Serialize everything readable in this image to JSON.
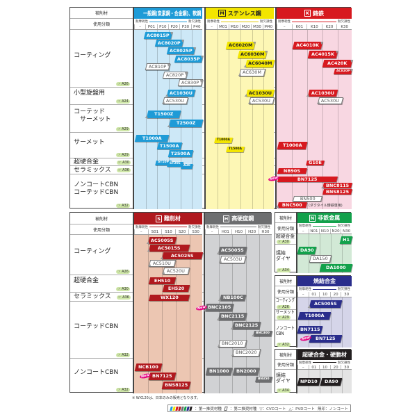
{
  "common": {
    "material_label": "被削材",
    "usage_label": "使用分類",
    "wear": "耐摩耗性",
    "chipping": "耐欠損性",
    "new_label": "New"
  },
  "tables": [
    {
      "id": "top",
      "rows": [
        {
          "label": "コーティング",
          "page": "A26"
        },
        {
          "label": "小型旋盤用",
          "page": "A24"
        },
        {
          "label": "コーテッド\n　サーメット",
          "page": "A29"
        },
        {
          "label": "サーメット",
          "page": "A29"
        },
        {
          "label": "超硬合金",
          "page": "A30"
        },
        {
          "label": "セラミックス",
          "page": "A36"
        },
        {
          "label": "ノンコートCBN\nコーテッドCBN",
          "page": "A32"
        }
      ],
      "sections": [
        {
          "letter": "P",
          "title": "一般鋼(炭素鋼・合金鋼)、軟鋼",
          "color": "#1e9bd7",
          "bg": "#cde8f7",
          "text_color": "#ffffff",
          "codes": [
            "–",
            "P01",
            "P10",
            "P20",
            "P30",
            "P40"
          ],
          "rows": [
            [
              {
                "name": "AC8015P",
                "from": "P01",
                "to": "P10",
                "coat": "cvd"
              },
              {
                "name": "AC8020P",
                "from": "P10",
                "to": "P20",
                "coat": "cvd"
              },
              {
                "name": "AC8025P",
                "from": "P20",
                "to": "P30",
                "coat": "cvd"
              },
              {
                "name": "AC8035P",
                "from": "P30",
                "to": "P40",
                "coat": "cvd"
              },
              {
                "name": "AC810P",
                "from": "P01",
                "to": "P10",
                "type": "secondary",
                "coat": "cvd"
              },
              {
                "name": "AC820P",
                "from": "P20",
                "to": "P20",
                "type": "secondary",
                "coat": "cvd"
              },
              {
                "name": "AC830P",
                "from": "P30",
                "to": "P40",
                "type": "secondary",
                "coat": "cvd"
              }
            ],
            [
              {
                "name": "AC1030U",
                "from": "P20",
                "to": "P30",
                "coat": "pvd"
              },
              {
                "name": "AC530U",
                "from": "P20",
                "to": "P20",
                "type": "secondary",
                "coat": "pvd"
              }
            ],
            [
              {
                "name": "T1500Z",
                "from": "P01",
                "to": "P20",
                "coat": "pvd"
              },
              {
                "name": "T2500Z",
                "from": "P20",
                "to": "P40",
                "coat": "pvd"
              }
            ],
            [
              {
                "name": "T1000A",
                "from": "–",
                "to": "P10"
              },
              {
                "name": "T1500A",
                "from": "P10",
                "to": "P20"
              },
              {
                "name": "T2500A",
                "from": "P20",
                "to": "P30"
              }
            ],
            [
              {
                "name": "ST10P",
                "from": "P10",
                "to": "P10",
                "small": true
              },
              {
                "name": "ST20E",
                "from": "P20",
                "to": "P20",
                "small": true
              },
              {
                "name": "A30",
                "from": "P30",
                "to": "P30",
                "small": true
              }
            ],
            [],
            []
          ]
        },
        {
          "letter": "M",
          "title": "ステンレス鋼",
          "color": "#f3e500",
          "bg": "#fdf7b5",
          "text_color": "#222222",
          "codes": [
            "–",
            "M01",
            "M10",
            "M20",
            "M30",
            "M40"
          ],
          "rows": [
            [
              {
                "name": "AC6020M",
                "from": "M10",
                "to": "M20",
                "coat": "cvd"
              },
              {
                "name": "AC6030M",
                "from": "M20",
                "to": "M30",
                "coat": "cvd"
              },
              {
                "name": "AC6040M",
                "from": "M30",
                "to": "M40",
                "coat": "pvd"
              },
              {
                "name": "AC630M",
                "from": "M20",
                "to": "M30",
                "type": "secondary",
                "coat": "pvd"
              }
            ],
            [
              {
                "name": "AC1030U",
                "from": "M30",
                "to": "M40",
                "coat": "pvd"
              },
              {
                "name": "AC530U",
                "from": "M30",
                "to": "M40",
                "type": "secondary",
                "coat": "pvd"
              }
            ],
            [],
            [
              {
                "name": "T1000A",
                "from": "M01",
                "to": "M01",
                "small": true
              },
              {
                "name": "T1500A",
                "from": "M10",
                "to": "M10",
                "small": true
              }
            ],
            [],
            [],
            []
          ]
        },
        {
          "letter": "K",
          "title": "鋳鉄",
          "color": "#d7191f",
          "bg": "#f8d7e2",
          "text_color": "#ffffff",
          "codes": [
            "–",
            "K01",
            "K10",
            "K20",
            "K30"
          ],
          "rows": [
            [
              {
                "name": "AC4010K",
                "from": "K01",
                "to": "K10",
                "coat": "cvd"
              },
              {
                "name": "AC4015K",
                "from": "K10",
                "to": "K20",
                "coat": "cvd"
              },
              {
                "name": "AC420K",
                "from": "K20",
                "to": "K30",
                "coat": "cvd"
              },
              {
                "name": "AC820P",
                "from": "K30",
                "to": "K30",
                "coat": "cvd",
                "small": true
              }
            ],
            [
              {
                "name": "AC1030U",
                "from": "K10",
                "to": "K20",
                "coat": "pvd"
              },
              {
                "name": "AC530U",
                "from": "K20",
                "to": "K20",
                "type": "secondary",
                "coat": "pvd"
              }
            ],
            [],
            [
              {
                "name": "T1000A",
                "from": "–",
                "to": "K01"
              }
            ],
            [
              {
                "name": "G10E",
                "from": "K10",
                "to": "K10"
              }
            ],
            [
              {
                "name": "NB90S",
                "from": "–",
                "to": "K01"
              }
            ],
            [
              {
                "name": "BN7125",
                "from": "–",
                "to": "K20",
                "new": true
              },
              {
                "name": "BNC8115",
                "from": "K20",
                "to": "K30",
                "coat": "pvd"
              },
              {
                "name": "BNS8125",
                "from": "K20",
                "to": "K30"
              },
              {
                "name": "BN500",
                "from": "K01",
                "to": "K10",
                "type": "secondary"
              },
              {
                "name": "BNC500",
                "from": "–",
                "to": "K01",
                "coat": "pvd",
                "note": "(ダクタイル鋳鉄専用)"
              }
            ]
          ]
        }
      ]
    },
    {
      "id": "bottom",
      "rows": [
        {
          "label": "コーティング",
          "page": "A26"
        },
        {
          "label": "超硬合金",
          "page": "A30"
        },
        {
          "label": "セラミックス",
          "page": "A36"
        },
        {
          "label": "コーテッドCBN",
          "page": "A32"
        },
        {
          "label": "ノンコートCBN",
          "page": "A32"
        }
      ],
      "sections": [
        {
          "letter": "S",
          "title": "難削材",
          "color": "#b0191e",
          "bg": "#ecc6b2",
          "text_color": "#ffffff",
          "codes": [
            "–",
            "S01",
            "S10",
            "S20",
            "S30"
          ],
          "rows": [
            [
              {
                "name": "AC5005S",
                "from": "S01",
                "to": "S10",
                "coat": "pvd"
              },
              {
                "name": "AC5015S",
                "from": "S01",
                "to": "S20",
                "coat": "pvd"
              },
              {
                "name": "AC5025S",
                "from": "S10",
                "to": "S30",
                "coat": "pvd"
              },
              {
                "name": "AC510U",
                "from": "S01",
                "to": "S10",
                "type": "secondary",
                "coat": "pvd"
              },
              {
                "name": "AC520U",
                "from": "S10",
                "to": "S20",
                "type": "secondary",
                "coat": "pvd"
              }
            ],
            [
              {
                "name": "EH510",
                "from": "S01",
                "to": "S10"
              },
              {
                "name": "EH520",
                "from": "S10",
                "to": "S20"
              }
            ],
            [
              {
                "name": "WX120",
                "from": "S01",
                "to": "S20"
              }
            ],
            [],
            [
              {
                "name": "NCB100",
                "from": "–",
                "to": "S01"
              },
              {
                "name": "BN7125",
                "from": "S01",
                "to": "S10",
                "new": true
              },
              {
                "name": "BNS8125",
                "from": "S10",
                "to": "S20"
              }
            ]
          ]
        },
        {
          "letter": "H",
          "title": "高硬度鋼",
          "color": "#6d6e70",
          "bg": "#d1d2d4",
          "text_color": "#ffffff",
          "codes": [
            "–",
            "H01",
            "H10",
            "H20",
            "H30"
          ],
          "rows": [
            [
              {
                "name": "AC5005S",
                "from": "H01",
                "to": "H10",
                "coat": "pvd"
              },
              {
                "name": "AC503U",
                "from": "H01",
                "to": "H10",
                "type": "secondary",
                "coat": "pvd"
              }
            ],
            [],
            [
              {
                "name": "NB100C",
                "from": "H01",
                "to": "H10",
                "coat": "pvd"
              }
            ],
            [
              {
                "name": "BNC2105",
                "from": "–",
                "to": "H01",
                "coat": "pvd",
                "new": true
              },
              {
                "name": "BNC2115",
                "from": "H01",
                "to": "H10",
                "coat": "pvd"
              },
              {
                "name": "BNC2125",
                "from": "H10",
                "to": "H20",
                "coat": "pvd"
              },
              {
                "name": "BNC300",
                "from": "H30",
                "to": "H30",
                "coat": "pvd",
                "small": true
              },
              {
                "name": "BNC2010",
                "from": "H01",
                "to": "H10",
                "type": "secondary",
                "coat": "pvd"
              },
              {
                "name": "BNC2020",
                "from": "H10",
                "to": "H20",
                "type": "secondary",
                "coat": "pvd"
              }
            ],
            [
              {
                "name": "BN1000",
                "from": "–",
                "to": "H01"
              },
              {
                "name": "BN2000",
                "from": "H10",
                "to": "H20"
              },
              {
                "name": "BN350",
                "from": "H30",
                "to": "H30",
                "small": true
              }
            ]
          ]
        }
      ]
    },
    {
      "id": "nonferrous",
      "rows": [
        {
          "label": "超硬合金",
          "page": "A30"
        },
        {
          "label": "焼結\nダイヤ",
          "page": "A34"
        }
      ],
      "sections": [
        {
          "letter": "N",
          "title": "非鉄金属",
          "color": "#12a14b",
          "bg": "#d2e9d6",
          "text_color": "#ffffff",
          "codes": [
            "–",
            "N01",
            "N10",
            "N20",
            "N30"
          ],
          "rows": [
            [
              {
                "name": "H1",
                "from": "N30",
                "to": "N30"
              }
            ],
            [
              {
                "name": "DA90",
                "from": "–",
                "to": "–"
              },
              {
                "name": "DA150",
                "from": "N01",
                "to": "N10",
                "type": "secondary"
              },
              {
                "name": "DA1000",
                "from": "N10",
                "to": "N30"
              }
            ]
          ]
        }
      ]
    },
    {
      "id": "sintered",
      "rows": [
        {
          "label": "コーティング",
          "page": "A26"
        },
        {
          "label": "サーメット",
          "page": "A29"
        },
        {
          "label": "ノンコート\nCBN",
          "page": "A32"
        }
      ],
      "sections": [
        {
          "letter": "",
          "title": "焼結合金",
          "color": "#2a2d8c",
          "bg": "#d5d5e9",
          "text_color": "#ffffff",
          "codes": [
            "–",
            "01",
            "10",
            "20",
            "30"
          ],
          "rows": [
            [
              {
                "name": "AC5005S",
                "from": "01",
                "to": "20",
                "coat": "pvd"
              }
            ],
            [
              {
                "name": "T1000A",
                "from": "–",
                "to": "10"
              }
            ],
            [
              {
                "name": "BN7115",
                "from": "–",
                "to": "01"
              },
              {
                "name": "BN7125",
                "from": "01",
                "to": "20",
                "new": true
              }
            ]
          ]
        }
      ]
    },
    {
      "id": "hardbrittle",
      "rows": [
        {
          "label": "焼結\nダイヤ",
          "page": "A34"
        }
      ],
      "sections": [
        {
          "letter": "",
          "title": "超硬合金・硬脆材",
          "color": "#231f20",
          "bg": "#e4e4e4",
          "text_color": "#ffffff",
          "codes": [
            "–",
            "01",
            "10",
            "20",
            "30"
          ],
          "rows": [
            [
              {
                "name": "NPD10",
                "from": "–",
                "to": "01"
              },
              {
                "name": "DA90",
                "from": "10",
                "to": "20"
              }
            ]
          ]
        }
      ]
    }
  ],
  "footnote": "※ WX120は、日本のみの販売となります。",
  "legend": {
    "primary": "：第一推奨材種",
    "secondary": "：第二推奨材種",
    "cvd": "▽：CVDコート",
    "pvd": "△：PVDコート",
    "none": "無印：ノンコート",
    "swatch_colors": [
      "#1e9bd7",
      "#f3e500",
      "#d7191f",
      "#b0191e",
      "#6d6e70",
      "#12a14b",
      "#2a2d8c",
      "#231f20"
    ]
  }
}
